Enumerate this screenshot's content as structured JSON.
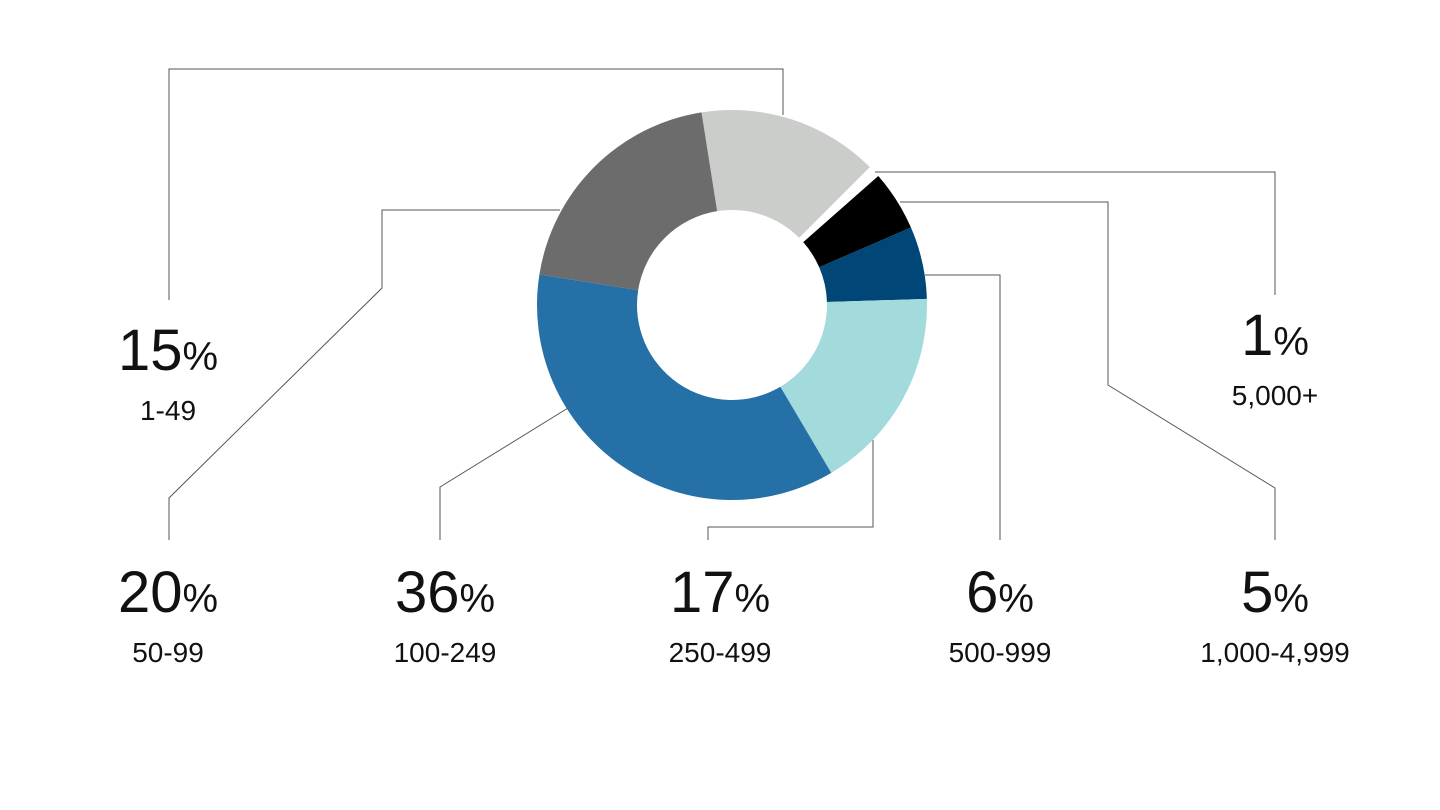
{
  "chart_data": {
    "type": "donut",
    "categories": [
      "1-49",
      "5,000+",
      "1,000-4,999",
      "500-999",
      "250-499",
      "100-249",
      "50-99"
    ],
    "series": [
      {
        "values": [
          15,
          1,
          5,
          6,
          17,
          36,
          20
        ],
        "value_labels": [
          "15%",
          "1%",
          "5%",
          "6%",
          "17%",
          "36%",
          "20%"
        ],
        "colors": [
          "#cbcdcb",
          "#ffffff",
          "#000000",
          "#004677",
          "#a3dadb",
          "#2670a8",
          "#6b6c6b"
        ]
      }
    ]
  }
}
